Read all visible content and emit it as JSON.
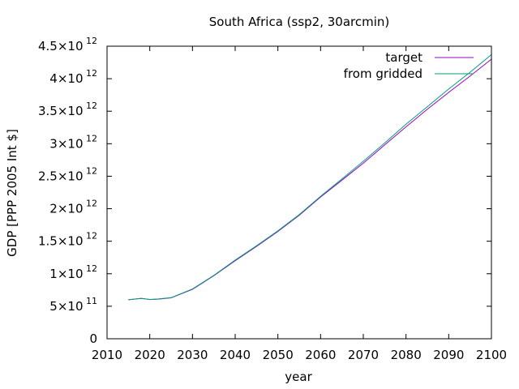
{
  "chart_data": {
    "type": "line",
    "title": "South Africa (ssp2, 30arcmin)",
    "xlabel": "year",
    "ylabel": "GDP [PPP 2005 Int $]",
    "xlim": [
      2010,
      2100
    ],
    "ylim": [
      0,
      4500000000000
    ],
    "x_ticks": [
      {
        "value": 2010,
        "label": "2010"
      },
      {
        "value": 2020,
        "label": "2020"
      },
      {
        "value": 2030,
        "label": "2030"
      },
      {
        "value": 2040,
        "label": "2040"
      },
      {
        "value": 2050,
        "label": "2050"
      },
      {
        "value": 2060,
        "label": "2060"
      },
      {
        "value": 2070,
        "label": "2070"
      },
      {
        "value": 2080,
        "label": "2080"
      },
      {
        "value": 2090,
        "label": "2090"
      },
      {
        "value": 2100,
        "label": "2100"
      }
    ],
    "y_ticks": [
      {
        "value": 0,
        "mantissa": "0",
        "exp": ""
      },
      {
        "value": 500000000000,
        "mantissa": "5×10",
        "exp": "11"
      },
      {
        "value": 1000000000000,
        "mantissa": "1×10",
        "exp": "12"
      },
      {
        "value": 1500000000000,
        "mantissa": "1.5×10",
        "exp": "12"
      },
      {
        "value": 2000000000000,
        "mantissa": "2×10",
        "exp": "12"
      },
      {
        "value": 2500000000000,
        "mantissa": "2.5×10",
        "exp": "12"
      },
      {
        "value": 3000000000000,
        "mantissa": "3×10",
        "exp": "12"
      },
      {
        "value": 3500000000000,
        "mantissa": "3.5×10",
        "exp": "12"
      },
      {
        "value": 4000000000000,
        "mantissa": "4×10",
        "exp": "12"
      },
      {
        "value": 4500000000000,
        "mantissa": "4.5×10",
        "exp": "12"
      }
    ],
    "legend_position": "top-right",
    "series": [
      {
        "name": "target",
        "color": "#9400d3",
        "x": [
          2015,
          2018,
          2020,
          2022,
          2025,
          2030,
          2035,
          2040,
          2045,
          2050,
          2055,
          2060,
          2065,
          2070,
          2075,
          2080,
          2085,
          2090,
          2095,
          2100
        ],
        "y": [
          600000000000,
          620000000000,
          605000000000,
          610000000000,
          630000000000,
          760000000000,
          970000000000,
          1200000000000,
          1420000000000,
          1650000000000,
          1900000000000,
          2180000000000,
          2440000000000,
          2700000000000,
          2980000000000,
          3260000000000,
          3530000000000,
          3790000000000,
          4040000000000,
          4300000000000
        ]
      },
      {
        "name": "from gridded",
        "color": "#009e73",
        "x": [
          2015,
          2018,
          2020,
          2022,
          2025,
          2030,
          2035,
          2040,
          2045,
          2050,
          2055,
          2060,
          2065,
          2070,
          2075,
          2080,
          2085,
          2090,
          2095,
          2100
        ],
        "y": [
          600000000000,
          622000000000,
          603000000000,
          612000000000,
          632000000000,
          765000000000,
          975000000000,
          1210000000000,
          1430000000000,
          1660000000000,
          1910000000000,
          2190000000000,
          2460000000000,
          2730000000000,
          3010000000000,
          3300000000000,
          3570000000000,
          3840000000000,
          4100000000000,
          4370000000000
        ]
      }
    ]
  }
}
